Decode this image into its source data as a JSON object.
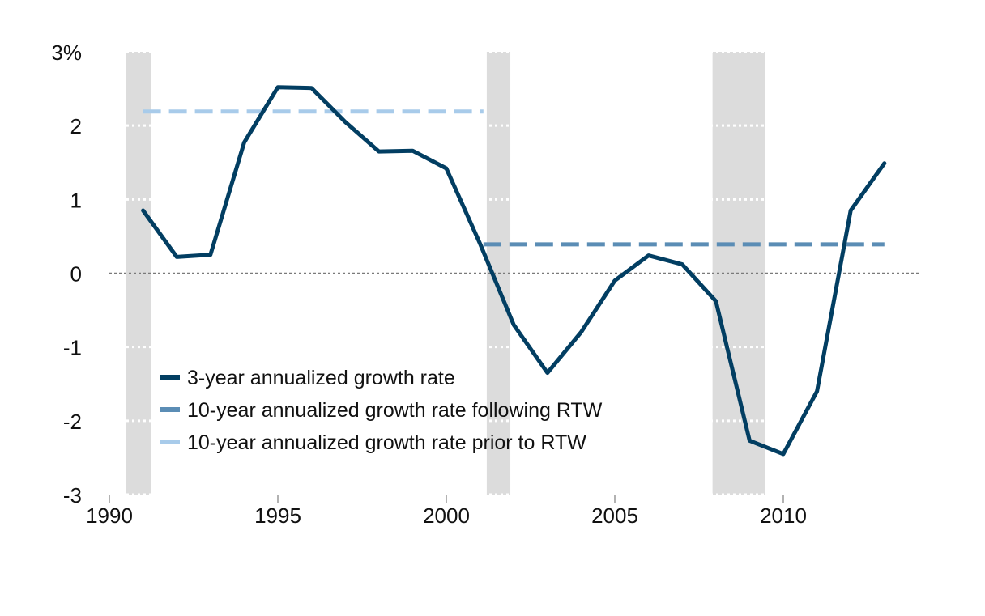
{
  "chart_data": {
    "type": "line",
    "title": "",
    "xlabel": "",
    "ylabel": "",
    "xlim": [
      1990,
      2014
    ],
    "ylim": [
      -3,
      3
    ],
    "grid": true,
    "legend_position": "bottom-left",
    "y_ticks": [
      {
        "value": 3,
        "label": "3%"
      },
      {
        "value": 2,
        "label": "2"
      },
      {
        "value": 1,
        "label": "1"
      },
      {
        "value": 0,
        "label": "0"
      },
      {
        "value": -1,
        "label": "-1"
      },
      {
        "value": -2,
        "label": "-2"
      },
      {
        "value": -3,
        "label": "-3"
      }
    ],
    "x_ticks": [
      {
        "value": 1990,
        "label": "1990"
      },
      {
        "value": 1995,
        "label": "1995"
      },
      {
        "value": 2000,
        "label": "2000"
      },
      {
        "value": 2005,
        "label": "2005"
      },
      {
        "value": 2010,
        "label": "2010"
      }
    ],
    "recession_bands": [
      {
        "start": 1990.5,
        "end": 1991.25
      },
      {
        "start": 2001.2,
        "end": 2001.9
      },
      {
        "start": 2007.9,
        "end": 2009.45
      }
    ],
    "series": [
      {
        "name": "3-year annualized growth rate",
        "color": "#023e62",
        "style": "solid",
        "x": [
          1991,
          1992,
          1993,
          1994,
          1995,
          1996,
          1997,
          1998,
          1999,
          2000,
          2001,
          2002,
          2003,
          2004,
          2005,
          2006,
          2007,
          2008,
          2009,
          2010,
          2011,
          2012,
          2013
        ],
        "y": [
          0.85,
          0.22,
          0.25,
          1.77,
          2.52,
          2.51,
          2.05,
          1.65,
          1.66,
          1.42,
          0.4,
          -0.7,
          -1.35,
          -0.8,
          -0.1,
          0.24,
          0.12,
          -0.38,
          -2.27,
          -2.45,
          -1.6,
          0.85,
          1.49
        ]
      },
      {
        "name": "10-year annualized growth rate following RTW",
        "color": "#5b8db5",
        "style": "dashed",
        "x": [
          2001.1,
          2013
        ],
        "y": [
          0.39,
          0.39
        ]
      },
      {
        "name": "10-year annualized growth rate prior to RTW",
        "color": "#a8cbea",
        "style": "dashed",
        "x": [
          1991,
          2001.1
        ],
        "y": [
          2.19,
          2.19
        ]
      }
    ]
  }
}
